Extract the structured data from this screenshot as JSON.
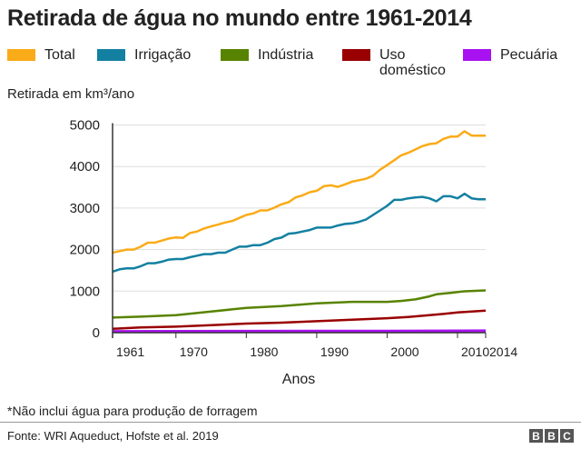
{
  "title": "Retirada de água no mundo entre 1961-2014",
  "note": "*Não inclui água para produção de forragem",
  "source": "Fonte: WRI Aqueduct, Hofste et al. 2019",
  "logo": [
    "B",
    "B",
    "C"
  ],
  "chart_data": {
    "type": "line",
    "title": "Retirada de água no mundo entre 1961-2014",
    "ylabel": "Retirada em km³/ano",
    "xlabel": "Anos",
    "xlim": [
      1961,
      2014
    ],
    "ylim": [
      0,
      5000
    ],
    "xticks": [
      "1961",
      "1970",
      "1980",
      "1990",
      "2000",
      "2010",
      "2014"
    ],
    "yticks": [
      "0",
      "1000",
      "2000",
      "3000",
      "4000",
      "5000"
    ],
    "grid": true,
    "legend_position": "top",
    "series": [
      {
        "name": "Total",
        "color": "#FAAB18",
        "x": [
          1961,
          1962,
          1963,
          1964,
          1965,
          1966,
          1967,
          1968,
          1969,
          1970,
          1971,
          1972,
          1973,
          1974,
          1975,
          1976,
          1977,
          1978,
          1979,
          1980,
          1981,
          1982,
          1983,
          1984,
          1985,
          1986,
          1987,
          1988,
          1989,
          1990,
          1991,
          1992,
          1993,
          1994,
          1995,
          1996,
          1997,
          1998,
          1999,
          2000,
          2001,
          2002,
          2003,
          2004,
          2005,
          2006,
          2007,
          2008,
          2009,
          2010,
          2011,
          2012,
          2013,
          2014
        ],
        "y": [
          1926,
          1962,
          1999,
          1999,
          2071,
          2166,
          2166,
          2217,
          2267,
          2290,
          2282,
          2398,
          2435,
          2507,
          2558,
          2602,
          2653,
          2689,
          2762,
          2834,
          2870,
          2943,
          2943,
          3010,
          3089,
          3140,
          3256,
          3307,
          3380,
          3415,
          3525,
          3546,
          3510,
          3570,
          3634,
          3670,
          3706,
          3779,
          3924,
          4033,
          4150,
          4270,
          4330,
          4410,
          4490,
          4540,
          4560,
          4665,
          4720,
          4720,
          4850,
          4745,
          4745,
          4745
        ]
      },
      {
        "name": "Irrigação",
        "color": "#1380A1",
        "x": [
          1961,
          1962,
          1963,
          1964,
          1965,
          1966,
          1967,
          1968,
          1969,
          1970,
          1971,
          1972,
          1973,
          1974,
          1975,
          1976,
          1977,
          1978,
          1979,
          1980,
          1981,
          1982,
          1983,
          1984,
          1985,
          1986,
          1987,
          1988,
          1989,
          1990,
          1991,
          1992,
          1993,
          1994,
          1995,
          1996,
          1997,
          1998,
          1999,
          2000,
          2001,
          2002,
          2003,
          2004,
          2005,
          2006,
          2007,
          2008,
          2009,
          2010,
          2011,
          2012,
          2013,
          2014
        ],
        "y": [
          1468,
          1526,
          1548,
          1548,
          1599,
          1672,
          1672,
          1708,
          1759,
          1773,
          1773,
          1817,
          1853,
          1890,
          1890,
          1926,
          1926,
          1999,
          2071,
          2071,
          2108,
          2108,
          2166,
          2253,
          2289,
          2384,
          2398,
          2435,
          2471,
          2529,
          2529,
          2529,
          2580,
          2616,
          2631,
          2667,
          2725,
          2834,
          2943,
          3052,
          3198,
          3198,
          3234,
          3256,
          3270,
          3234,
          3161,
          3285,
          3285,
          3234,
          3343,
          3234,
          3212,
          3212
        ]
      },
      {
        "name": "Indústria",
        "color": "#588300",
        "x": [
          1961,
          1965,
          1970,
          1975,
          1980,
          1985,
          1990,
          1995,
          2000,
          2002,
          2004,
          2006,
          2007,
          2009,
          2011,
          2014
        ],
        "y": [
          363,
          385,
          421,
          509,
          596,
          640,
          705,
          741,
          741,
          763,
          800,
          872,
          923,
          959,
          996,
          1017
        ]
      },
      {
        "name": "Uso doméstico",
        "color": "#990000",
        "x": [
          1961,
          1965,
          1970,
          1975,
          1980,
          1985,
          1990,
          1995,
          2000,
          2003,
          2006,
          2008,
          2010,
          2014
        ],
        "y": [
          94,
          124,
          145,
          182,
          218,
          240,
          276,
          312,
          349,
          378,
          421,
          451,
          487,
          530
        ]
      },
      {
        "name": "Pecuária",
        "color": "#A812F0",
        "x": [
          1961,
          1970,
          1980,
          1990,
          2000,
          2010,
          2014
        ],
        "y": [
          30,
          32,
          35,
          38,
          40,
          43,
          45
        ]
      }
    ]
  }
}
